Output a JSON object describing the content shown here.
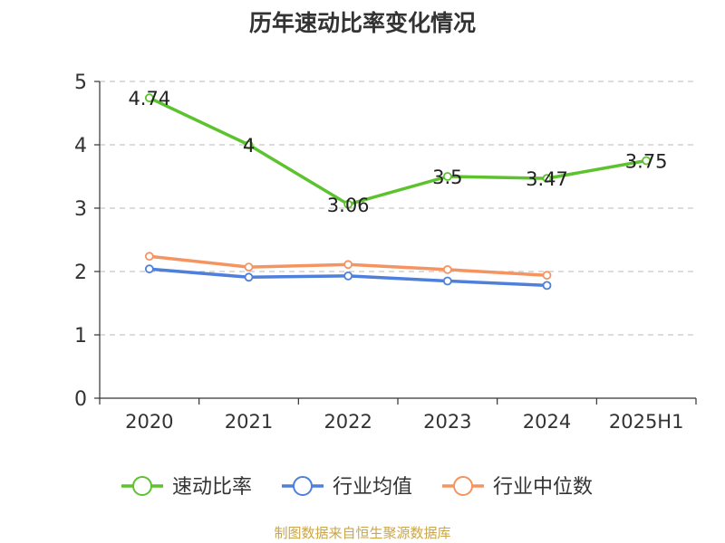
{
  "colors": {
    "series": [
      "#5cc22e",
      "#4e7fdb",
      "#f59460"
    ],
    "axis": "#333333",
    "grid": "#c8c8c8",
    "source": "#c9a64a"
  },
  "chart_data": {
    "type": "line",
    "title": "历年速动比率变化情况",
    "xlabel": "",
    "ylabel": "",
    "categories": [
      "2020",
      "2021",
      "2022",
      "2023",
      "2024",
      "2025H1"
    ],
    "ylim": [
      0,
      5
    ],
    "yticks": [
      "0",
      "1",
      "2",
      "3",
      "4",
      "5"
    ],
    "grid": true,
    "legend_position": "bottom",
    "series": [
      {
        "name": "速动比率",
        "values": [
          4.74,
          4,
          3.06,
          3.5,
          3.47,
          3.75
        ],
        "labels": [
          "4.74",
          "4",
          "3.06",
          "3.5",
          "3.47",
          "3.75"
        ]
      },
      {
        "name": "行业均值",
        "values": [
          2.04,
          1.91,
          1.93,
          1.85,
          1.78,
          null
        ]
      },
      {
        "name": "行业中位数",
        "values": [
          2.24,
          2.07,
          2.11,
          2.03,
          1.94,
          null
        ]
      }
    ]
  },
  "source_note": "制图数据来自恒生聚源数据库"
}
